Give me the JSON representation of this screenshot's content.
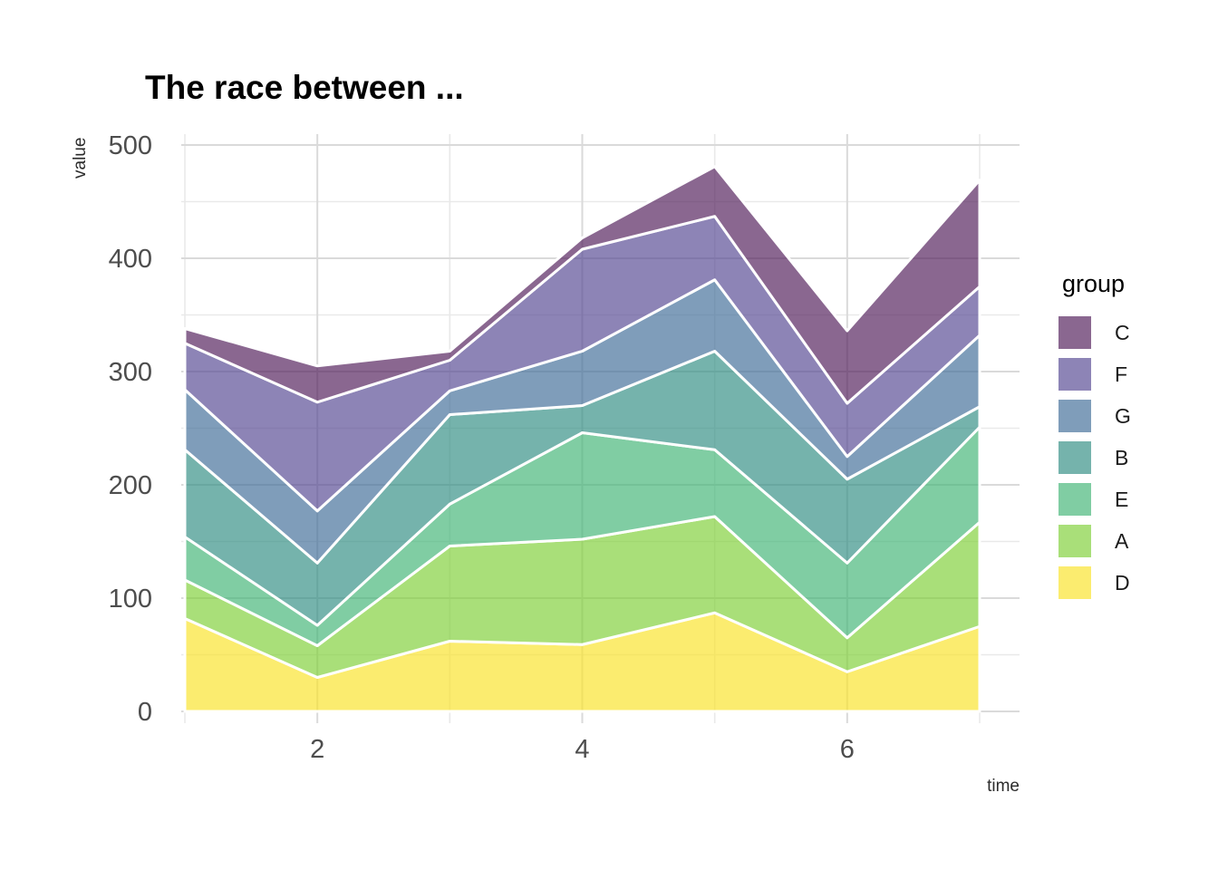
{
  "title": "The race between ...",
  "axes": {
    "x_label": "time",
    "y_label": "value",
    "x_ticks": [
      2,
      4,
      6
    ],
    "y_ticks": [
      0,
      100,
      200,
      300,
      400,
      500
    ]
  },
  "legend": {
    "title": "group",
    "entries": [
      "C",
      "F",
      "G",
      "B",
      "E",
      "A",
      "D"
    ]
  },
  "colors": {
    "background": "#ffffff",
    "grid_major": "#dadada",
    "grid_minor": "#e9e9e9",
    "tick_label": "#4d4d4d",
    "band_separator": "#ffffff",
    "title_text": "#000000"
  },
  "chart_data": {
    "type": "area",
    "stacked": true,
    "title": "The race between ...",
    "xlabel": "time",
    "ylabel": "value",
    "x": [
      1,
      2,
      3,
      4,
      5,
      6,
      7
    ],
    "xlim": [
      1,
      7
    ],
    "ylim": [
      0,
      500
    ],
    "x_minor": [
      1,
      3,
      5,
      7
    ],
    "y_minor": [
      50,
      150,
      250,
      350,
      450
    ],
    "grid": true,
    "legend_position": "right",
    "fill_alpha": 0.68,
    "stacking_order_bottom_to_top": [
      "D",
      "A",
      "E",
      "B",
      "G",
      "F",
      "C"
    ],
    "series": [
      {
        "name": "D",
        "fill": "#f9e32b",
        "display_color": "#fbec6f",
        "values": [
          82,
          30,
          62,
          59,
          87,
          35,
          75
        ]
      },
      {
        "name": "A",
        "fill": "#80d03a",
        "display_color": "#a9df79",
        "values": [
          34,
          28,
          84,
          93,
          85,
          30,
          92
        ]
      },
      {
        "name": "E",
        "fill": "#44b578",
        "display_color": "#80cda3",
        "values": [
          38,
          18,
          37,
          94,
          59,
          66,
          84
        ]
      },
      {
        "name": "B",
        "fill": "#338f85",
        "display_color": "#74b3ac",
        "values": [
          77,
          55,
          79,
          24,
          87,
          74,
          18
        ]
      },
      {
        "name": "G",
        "fill": "#436f9a",
        "display_color": "#7f9dba",
        "values": [
          53,
          46,
          21,
          48,
          63,
          20,
          63
        ]
      },
      {
        "name": "F",
        "fill": "#574a94",
        "display_color": "#8d84b6",
        "values": [
          41,
          96,
          27,
          90,
          56,
          47,
          43
        ]
      },
      {
        "name": "C",
        "fill": "#531f5c",
        "display_color": "#8a6790",
        "values": [
          13,
          32,
          8,
          10,
          44,
          64,
          94
        ]
      }
    ]
  }
}
